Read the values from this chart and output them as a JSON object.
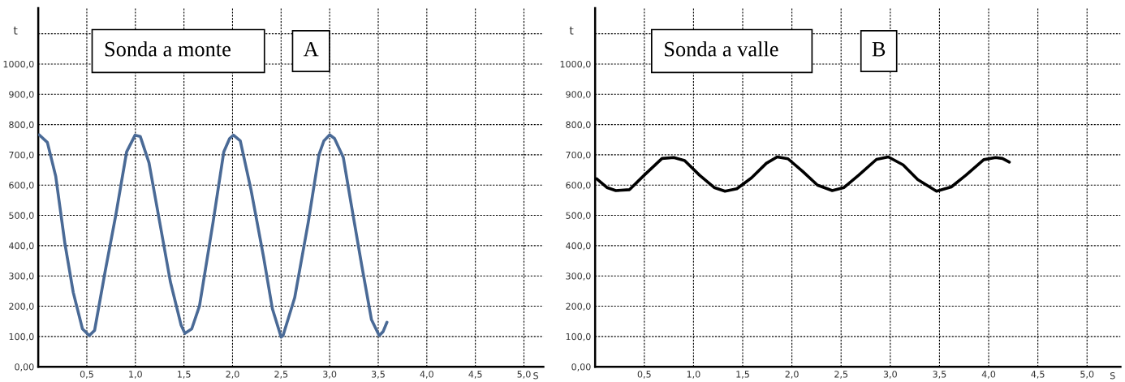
{
  "chart_data": [
    {
      "type": "line",
      "xlabel": "S",
      "ylabel": "t",
      "annotations": [
        "Sonda a monte",
        "A"
      ],
      "xlim": [
        0,
        5.2
      ],
      "ylim": [
        0,
        1185
      ],
      "xticks": [
        {
          "value": 0.5,
          "label": "0,5"
        },
        {
          "value": 1.0,
          "label": "1,0"
        },
        {
          "value": 1.5,
          "label": "1,5"
        },
        {
          "value": 2.0,
          "label": "2,0"
        },
        {
          "value": 2.5,
          "label": "2,5"
        },
        {
          "value": 3.0,
          "label": "3,0"
        },
        {
          "value": 3.5,
          "label": "3,5"
        },
        {
          "value": 4.0,
          "label": "4,0"
        },
        {
          "value": 4.5,
          "label": "4,5"
        },
        {
          "value": 5.0,
          "label": "5,0"
        }
      ],
      "yticks": [
        {
          "value": 0,
          "label": "0,00"
        },
        {
          "value": 100,
          "label": "100,0"
        },
        {
          "value": 200,
          "label": "200,0"
        },
        {
          "value": 300,
          "label": "300,0"
        },
        {
          "value": 400,
          "label": "400,0"
        },
        {
          "value": 500,
          "label": "500,0"
        },
        {
          "value": 600,
          "label": "600,0"
        },
        {
          "value": 700,
          "label": "700,0"
        },
        {
          "value": 800,
          "label": "800,0"
        },
        {
          "value": 900,
          "label": "900,0"
        },
        {
          "value": 1000,
          "label": "1000,0"
        },
        {
          "value": 1100,
          "label": null
        }
      ],
      "grid": true,
      "line_style": "solid",
      "marker": "none",
      "series": [
        {
          "color": "#4a6a96",
          "x": [
            0.01,
            0.094,
            0.18,
            0.275,
            0.36,
            0.455,
            0.525,
            0.58,
            0.69,
            0.8,
            0.91,
            0.997,
            1.05,
            1.14,
            1.25,
            1.36,
            1.47,
            1.51,
            1.58,
            1.66,
            1.8,
            1.91,
            1.97,
            2.01,
            2.08,
            2.19,
            2.32,
            2.41,
            2.5,
            2.52,
            2.64,
            2.78,
            2.89,
            2.94,
            3.0,
            3.05,
            3.14,
            3.22,
            3.33,
            3.43,
            3.51,
            3.55,
            3.59
          ],
          "values": [
            766,
            741,
            629,
            406,
            246,
            125,
            103,
            120,
            317,
            504,
            710,
            765,
            761,
            674,
            478,
            281,
            138,
            110,
            125,
            201,
            478,
            710,
            754,
            765,
            746,
            585,
            362,
            192,
            98,
            103,
            228,
            478,
            701,
            746,
            766,
            754,
            692,
            540,
            335,
            156,
            103,
            116,
            147
          ]
        }
      ]
    },
    {
      "type": "line",
      "xlabel": "S",
      "ylabel": "t",
      "annotations": [
        "Sonda a valle",
        "B"
      ],
      "xlim": [
        0,
        5.34
      ],
      "ylim": [
        0,
        1185
      ],
      "xticks": [
        {
          "value": 0.5,
          "label": "0,5"
        },
        {
          "value": 1.0,
          "label": "1,0"
        },
        {
          "value": 1.5,
          "label": "1,5"
        },
        {
          "value": 2.0,
          "label": "2,0"
        },
        {
          "value": 2.5,
          "label": "2,5"
        },
        {
          "value": 3.0,
          "label": "3,0"
        },
        {
          "value": 3.5,
          "label": "3,5"
        },
        {
          "value": 4.0,
          "label": "4,0"
        },
        {
          "value": 4.5,
          "label": "4,5"
        },
        {
          "value": 5.0,
          "label": "5,0"
        }
      ],
      "yticks": [
        {
          "value": 0,
          "label": "0,00"
        },
        {
          "value": 100,
          "label": "100,0"
        },
        {
          "value": 200,
          "label": "200,0"
        },
        {
          "value": 300,
          "label": "300,0"
        },
        {
          "value": 400,
          "label": "400,0"
        },
        {
          "value": 500,
          "label": "500,0"
        },
        {
          "value": 600,
          "label": "600,0"
        },
        {
          "value": 700,
          "label": "700,0"
        },
        {
          "value": 800,
          "label": "800,0"
        },
        {
          "value": 900,
          "label": "900,0"
        },
        {
          "value": 1000,
          "label": "1000,0"
        },
        {
          "value": 1100,
          "label": null
        }
      ],
      "grid": true,
      "line_style": "solid",
      "marker": "none",
      "series": [
        {
          "color": "#000000",
          "x": [
            0.015,
            0.12,
            0.21,
            0.35,
            0.5,
            0.68,
            0.8,
            0.91,
            1.06,
            1.21,
            1.32,
            1.44,
            1.59,
            1.74,
            1.85,
            1.96,
            2.11,
            2.26,
            2.41,
            2.53,
            2.68,
            2.86,
            2.98,
            3.13,
            3.28,
            3.47,
            3.62,
            3.77,
            3.95,
            4.07,
            4.14,
            4.21
          ],
          "values": [
            621,
            592,
            582,
            585,
            633,
            688,
            691,
            681,
            633,
            592,
            580,
            588,
            624,
            672,
            693,
            687,
            645,
            600,
            582,
            592,
            633,
            685,
            693,
            667,
            618,
            580,
            594,
            633,
            684,
            691,
            688,
            676
          ]
        }
      ]
    }
  ]
}
